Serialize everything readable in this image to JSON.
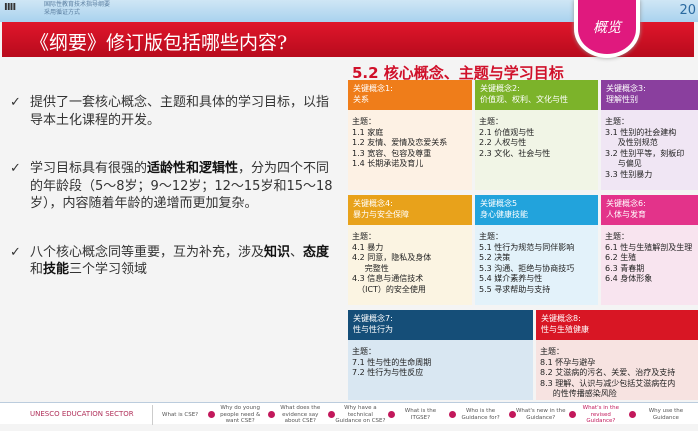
{
  "header": {
    "logo": "ⅡⅡ",
    "subtitle_lines": [
      "国际性教育技术指导纲要",
      "采用循证方式"
    ],
    "year": "20",
    "title": "《纲要》修订版包括哪些内容?",
    "badge": "概览"
  },
  "left": {
    "bullets": [
      [
        {
          "t": "提供了一套核心概念、主题和具体的学习目标，以指导本土化课程的开发。",
          "b": false
        }
      ],
      [
        {
          "t": "学习目标具有很强的",
          "b": false
        },
        {
          "t": "适龄性和逻辑性",
          "b": true
        },
        {
          "t": "，分为四个不同的年龄段（5～8岁；9～12岁；12～15岁和15～18岁），内容随着年龄的递增而更加复杂。",
          "b": false
        }
      ],
      [
        {
          "t": "八个核心概念同等重要，互为补充，涉及",
          "b": false
        },
        {
          "t": "知识",
          "b": true
        },
        {
          "t": "、",
          "b": false
        },
        {
          "t": "态度",
          "b": true
        },
        {
          "t": "和",
          "b": false
        },
        {
          "t": "技能",
          "b": true
        },
        {
          "t": "三个学习领域",
          "b": false
        }
      ]
    ]
  },
  "right": {
    "title": "5.2 核心概念、主题与学习目标",
    "cards": [
      {
        "head": [
          "关键概念1:",
          "关系"
        ],
        "color": "#ef7d1a",
        "bg": "#fdf1e4",
        "topics": [
          "主题：",
          "1.1 家庭",
          "1.2 友情、爱情及恋爱关系",
          "1.3 宽容、包容及尊重",
          "1.4 长期承诺及育儿"
        ]
      },
      {
        "head": [
          "关键概念2:",
          "价值观、权利、文化与性"
        ],
        "color": "#7cb32a",
        "bg": "#f1f5e6",
        "topics": [
          "主题：",
          "2.1 价值观与性",
          "2.2 人权与性",
          "2.3 文化、社会与性"
        ]
      },
      {
        "head": [
          "关键概念3:",
          "理解性别"
        ],
        "color": "#8a3f9e",
        "bg": "#f0e6f4",
        "topics": [
          "主题：",
          "3.1 性别的社会建构",
          "     及性别规范",
          "3.2 性别平等，刻板印",
          "     与偏见",
          "3.3 性别暴力"
        ]
      },
      {
        "head": [
          "关键概念4:",
          "暴力与安全保障"
        ],
        "color": "#e8a21b",
        "bg": "#fbf4e2",
        "topics": [
          "主题：",
          "4.1 暴力",
          "4.2 同意，隐私及身体",
          "     完整性",
          "4.3 信息与通信技术",
          "  （ICT）的安全使用"
        ]
      },
      {
        "head": [
          "关键概念5",
          "身心健康技能"
        ],
        "color": "#22a3dc",
        "bg": "#e3f2fa",
        "topics": [
          "主题：",
          "5.1 性行为规范与同伴影响",
          "5.2 决策",
          "5.3 沟通、拒绝与协商技巧",
          "5.4 媒介素养与性",
          "5.5 寻求帮助与支持"
        ]
      },
      {
        "head": [
          "关键概念6:",
          "人体与发育"
        ],
        "color": "#e3338a",
        "bg": "#f8e4ef",
        "topics": [
          "主题：",
          "6.1 性与生殖解剖及生理",
          "6.2 生殖",
          "6.3 青春期",
          "6.4 身体形象"
        ]
      },
      {
        "head": [
          "关键概念7:",
          "性与性行为"
        ],
        "color": "#154e78",
        "bg": "#d9e7f2",
        "topics": [
          "主题：",
          "7.1 性与性的生命周期",
          "7.2 性行为与性反应"
        ]
      },
      {
        "head": [
          "关键概念8:",
          "性与生殖健康"
        ],
        "color": "#d81624",
        "bg": "#f7e3e1",
        "topics": [
          "主题：",
          "8.1 怀孕与避孕",
          "8.2 艾滋病的污名、关爱、治疗及支持",
          "8.3 理解、认识与减少包括艾滋病在内",
          "     的性传播感染风险"
        ]
      }
    ]
  },
  "footer": {
    "sector": "UNESCO EDUCATION SECTOR",
    "nav": [
      {
        "label": "What is CSE?"
      },
      {
        "label": "Why do young people need & want CSE?"
      },
      {
        "label": "What does the evidence say about CSE?"
      },
      {
        "label": "Why have a technical Guidance on CSE?"
      },
      {
        "label": "What is the ITGSE?"
      },
      {
        "label": "Who is the Guidance for?"
      },
      {
        "label": "What's new in the Guidance?"
      },
      {
        "label": "What's in the revised Guidance?",
        "active": true
      },
      {
        "label": "Why use the Guidance"
      }
    ]
  }
}
